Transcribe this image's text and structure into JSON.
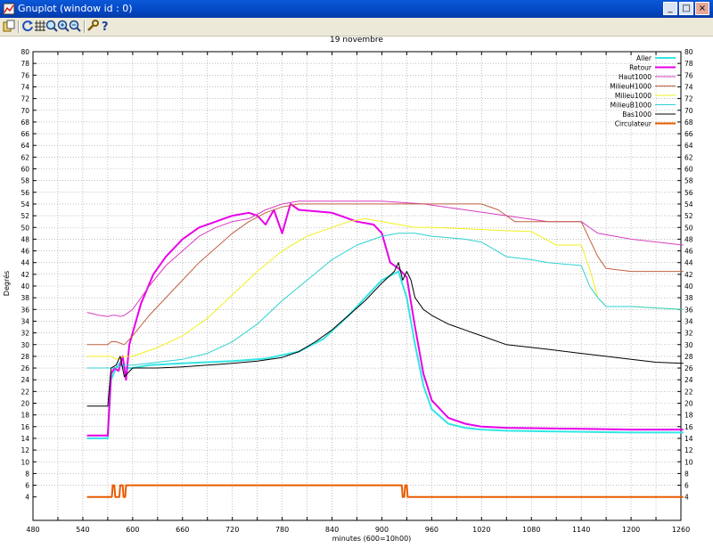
{
  "window": {
    "title": "Gnuplot (window id : 0)",
    "buttons": {
      "minimize": "_",
      "maximize": "□",
      "close": "×"
    }
  },
  "toolbar": {
    "icons": [
      "copy-to-clipboard-icon",
      "replot-icon",
      "grid-icon",
      "zoom-previous-icon",
      "zoom-in-icon",
      "zoom-out-icon",
      "options-icon",
      "help-icon"
    ]
  },
  "chart_data": {
    "type": "line",
    "title": "19 novembre",
    "xlabel": "minutes (600=10h00)",
    "ylabel": "Degrés",
    "xlim": [
      480,
      1260
    ],
    "ylim": [
      0,
      80
    ],
    "xticks": [
      480,
      510,
      540,
      570,
      600,
      630,
      660,
      690,
      720,
      750,
      780,
      810,
      840,
      870,
      900,
      930,
      960,
      990,
      1020,
      1050,
      1080,
      1110,
      1140,
      1170,
      1200,
      1230,
      1260
    ],
    "xtick_labels": [
      "480",
      "",
      "540",
      "",
      "600",
      "",
      "660",
      "",
      "720",
      "",
      "780",
      "",
      "840",
      "",
      "900",
      "",
      "960",
      "",
      "1020",
      "",
      "1080",
      "",
      "1140",
      "",
      "1200",
      "",
      "1260"
    ],
    "yticks": [
      4,
      6,
      8,
      10,
      12,
      14,
      16,
      18,
      20,
      22,
      24,
      26,
      28,
      30,
      32,
      34,
      36,
      38,
      40,
      42,
      44,
      46,
      48,
      50,
      52,
      54,
      56,
      58,
      60,
      62,
      64,
      66,
      68,
      70,
      72,
      74,
      76,
      78,
      80
    ],
    "grid": true,
    "legend_position": "top-right",
    "series": [
      {
        "name": "Aller",
        "color": "#33e5e5",
        "width": 2,
        "x": [
          545,
          570,
          574,
          580,
          585,
          590,
          600,
          620,
          660,
          690,
          720,
          760,
          800,
          830,
          860,
          880,
          900,
          920,
          930,
          940,
          950,
          960,
          980,
          1000,
          1020,
          1050,
          1100,
          1150,
          1200,
          1263
        ],
        "y": [
          14,
          14,
          24,
          26,
          27,
          26,
          26,
          26.5,
          26.8,
          27,
          27.2,
          27.6,
          28.8,
          31,
          35,
          38,
          41,
          42.5,
          38,
          30,
          23,
          19,
          16.5,
          15.8,
          15.5,
          15.3,
          15.2,
          15.1,
          15,
          15
        ]
      },
      {
        "name": "Retour",
        "color": "#e800e8",
        "width": 2,
        "x": [
          545,
          570,
          574,
          578,
          583,
          588,
          592,
          596,
          610,
          625,
          640,
          660,
          680,
          700,
          720,
          740,
          750,
          760,
          770,
          780,
          790,
          800,
          840,
          870,
          890,
          900,
          910,
          920,
          930,
          940,
          950,
          960,
          980,
          1000,
          1020,
          1050,
          1100,
          1150,
          1200,
          1263
        ],
        "y": [
          14.5,
          14.5,
          25,
          26,
          25.5,
          28,
          24,
          30,
          37,
          42,
          45,
          48,
          50,
          51,
          52,
          52.5,
          52,
          50.5,
          53,
          49,
          54,
          53,
          52.5,
          51,
          50.5,
          49,
          44,
          43,
          41.5,
          33,
          25,
          20.5,
          17.5,
          16.5,
          16,
          15.8,
          15.7,
          15.6,
          15.5,
          15.5
        ]
      },
      {
        "name": "Haut1000",
        "color": "#d83ec0",
        "width": 1,
        "x": [
          545,
          560,
          570,
          575,
          580,
          585,
          590,
          600,
          620,
          640,
          660,
          680,
          700,
          720,
          740,
          760,
          780,
          800,
          840,
          880,
          900,
          950,
          1000,
          1050,
          1100,
          1140,
          1160,
          1200,
          1263
        ],
        "y": [
          35.5,
          35,
          34.8,
          35,
          35,
          34.8,
          35,
          36,
          40,
          43.5,
          46,
          48.5,
          50,
          51,
          51.5,
          53,
          54,
          54.5,
          54.5,
          54.5,
          54.5,
          54,
          53,
          52,
          51,
          51,
          49,
          48,
          47
        ]
      },
      {
        "name": "MilieuH1000",
        "color": "#c06040",
        "width": 1,
        "x": [
          545,
          570,
          574,
          580,
          590,
          600,
          620,
          640,
          660,
          680,
          700,
          720,
          740,
          760,
          780,
          800,
          830,
          860,
          890,
          920,
          960,
          1000,
          1020,
          1040,
          1060,
          1100,
          1140,
          1160,
          1170,
          1200,
          1263
        ],
        "y": [
          30,
          30,
          30.5,
          30.5,
          30,
          31.5,
          35,
          38,
          41,
          44,
          46.5,
          49,
          51,
          52.5,
          53.5,
          54,
          54,
          54,
          54,
          54,
          54,
          54,
          54,
          53,
          51,
          51,
          51,
          45,
          43,
          42.5,
          42.5
        ]
      },
      {
        "name": "Milieu1000",
        "color": "#f0f020",
        "width": 1,
        "x": [
          545,
          570,
          574,
          580,
          590,
          600,
          630,
          660,
          690,
          720,
          750,
          780,
          810,
          840,
          860,
          880,
          900,
          920,
          940,
          960,
          1000,
          1040,
          1080,
          1110,
          1140,
          1150,
          1160,
          1170,
          1200,
          1263
        ],
        "y": [
          28,
          28,
          28,
          27.5,
          28,
          28,
          29.5,
          31.5,
          34.5,
          38.5,
          42.5,
          46,
          48.5,
          50,
          51,
          51.5,
          51,
          50.5,
          50,
          50,
          49.8,
          49.5,
          49.3,
          47,
          47,
          43,
          38,
          36.5,
          36.5,
          36
        ]
      },
      {
        "name": "MilieuB1000",
        "color": "#30d0d0",
        "width": 1,
        "x": [
          545,
          570,
          574,
          580,
          590,
          600,
          630,
          660,
          690,
          720,
          750,
          780,
          810,
          840,
          870,
          900,
          920,
          940,
          960,
          1000,
          1020,
          1050,
          1080,
          1100,
          1140,
          1150,
          1160,
          1170,
          1200,
          1263
        ],
        "y": [
          26,
          26,
          26,
          26,
          26.5,
          26.5,
          27,
          27.5,
          28.5,
          30.5,
          33.5,
          37.5,
          41,
          44.5,
          47,
          48.5,
          49,
          49,
          48.5,
          48,
          47.5,
          45,
          44.5,
          44,
          43.5,
          40,
          38,
          36.5,
          36.5,
          36
        ]
      },
      {
        "name": "Bas1000",
        "color": "#000000",
        "width": 1,
        "x": [
          545,
          570,
          574,
          580,
          585,
          590,
          600,
          630,
          660,
          690,
          720,
          750,
          780,
          800,
          820,
          840,
          860,
          880,
          900,
          915,
          920,
          925,
          930,
          935,
          940,
          950,
          960,
          980,
          1000,
          1020,
          1050,
          1100,
          1140,
          1170,
          1200,
          1230,
          1263
        ],
        "y": [
          19.5,
          19.5,
          26,
          26.5,
          28,
          24.5,
          26,
          26,
          26.2,
          26.5,
          26.8,
          27.2,
          27.8,
          28.8,
          30.5,
          32.5,
          35,
          37.5,
          40.5,
          42.5,
          44,
          41,
          42.5,
          41,
          38,
          36,
          35,
          33.5,
          32.5,
          31.5,
          30,
          29.2,
          28.5,
          28,
          27.5,
          27,
          26.8
        ]
      },
      {
        "name": "Circulateur",
        "color": "#e85c00",
        "width": 2,
        "x": [
          545,
          575,
          576,
          578,
          579,
          584,
          585,
          588,
          589,
          591,
          592,
          924,
          925,
          927,
          928,
          930,
          931,
          1263
        ],
        "y": [
          4,
          4,
          6,
          6,
          4,
          4,
          6,
          6,
          4,
          4,
          6,
          6,
          4,
          4,
          6,
          6,
          4,
          4
        ]
      }
    ]
  }
}
